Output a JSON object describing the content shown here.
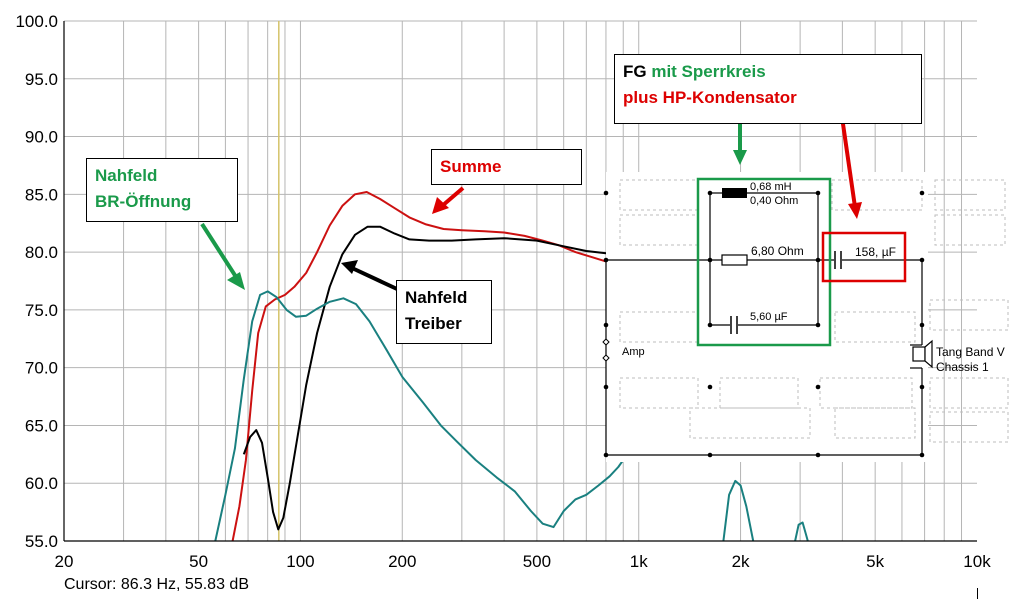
{
  "chart_data": {
    "type": "line",
    "x_scale": "log",
    "xlim": [
      20,
      10000
    ],
    "ylim": [
      55,
      100
    ],
    "grid": true,
    "y_ticks": [
      "100.0",
      "95.0",
      "90.0",
      "85.0",
      "80.0",
      "75.0",
      "70.0",
      "65.0",
      "60.0",
      "55.0"
    ],
    "x_ticks": [
      {
        "v": 20,
        "label": "20"
      },
      {
        "v": 50,
        "label": "50"
      },
      {
        "v": 100,
        "label": "100"
      },
      {
        "v": 200,
        "label": "200"
      },
      {
        "v": 500,
        "label": "500"
      },
      {
        "v": 1000,
        "label": "1k"
      },
      {
        "v": 2000,
        "label": "2k"
      },
      {
        "v": 5000,
        "label": "5k"
      },
      {
        "v": 10000,
        "label": "10k"
      }
    ],
    "cursor": {
      "hz": 86.3
    },
    "cursor_readout": "Cursor: 86.3 Hz, 55.83 dB",
    "series": [
      {
        "name": "Summe",
        "color": "#cc1111",
        "points": [
          [
            63,
            55
          ],
          [
            66,
            58
          ],
          [
            69,
            62
          ],
          [
            72,
            68
          ],
          [
            75,
            73
          ],
          [
            79,
            75.3
          ],
          [
            84,
            75.9
          ],
          [
            90,
            76.3
          ],
          [
            96,
            77
          ],
          [
            104,
            78.2
          ],
          [
            112,
            80
          ],
          [
            122,
            82.3
          ],
          [
            133,
            84
          ],
          [
            145,
            85
          ],
          [
            157,
            85.2
          ],
          [
            172,
            84.6
          ],
          [
            190,
            83.8
          ],
          [
            210,
            83
          ],
          [
            235,
            82.4
          ],
          [
            265,
            82
          ],
          [
            300,
            81.9
          ],
          [
            350,
            81.8
          ],
          [
            400,
            81.7
          ],
          [
            460,
            81.4
          ],
          [
            520,
            81
          ],
          [
            580,
            80.6
          ],
          [
            650,
            80
          ],
          [
            720,
            79.6
          ],
          [
            800,
            79.2
          ],
          [
            850,
            79.8
          ]
        ]
      },
      {
        "name": "Nahfeld Treiber",
        "color": "#000000",
        "points": [
          [
            68,
            62.5
          ],
          [
            71,
            64
          ],
          [
            74,
            64.6
          ],
          [
            77,
            63.5
          ],
          [
            80,
            60.5
          ],
          [
            83,
            57.5
          ],
          [
            86,
            56
          ],
          [
            89,
            57
          ],
          [
            93,
            60
          ],
          [
            98,
            64
          ],
          [
            104,
            68.5
          ],
          [
            112,
            73
          ],
          [
            122,
            77
          ],
          [
            133,
            79.8
          ],
          [
            145,
            81.5
          ],
          [
            158,
            82.2
          ],
          [
            172,
            82.2
          ],
          [
            190,
            81.6
          ],
          [
            210,
            81.1
          ],
          [
            240,
            81
          ],
          [
            280,
            81
          ],
          [
            330,
            81.1
          ],
          [
            400,
            81.2
          ],
          [
            500,
            81
          ],
          [
            600,
            80.5
          ],
          [
            700,
            80.1
          ],
          [
            800,
            79.9
          ],
          [
            900,
            79.8
          ]
        ]
      },
      {
        "name": "Nahfeld BR-Öffnung",
        "color": "#1a8080",
        "points": [
          [
            56,
            55
          ],
          [
            60,
            59
          ],
          [
            64,
            63
          ],
          [
            68,
            69
          ],
          [
            72,
            74
          ],
          [
            76,
            76.3
          ],
          [
            80,
            76.6
          ],
          [
            85,
            76.1
          ],
          [
            91,
            75
          ],
          [
            97,
            74.4
          ],
          [
            104,
            74.5
          ],
          [
            112,
            75.1
          ],
          [
            122,
            75.7
          ],
          [
            134,
            76
          ],
          [
            146,
            75.5
          ],
          [
            160,
            74
          ],
          [
            180,
            71.5
          ],
          [
            200,
            69.2
          ],
          [
            230,
            67
          ],
          [
            260,
            65
          ],
          [
            290,
            63.6
          ],
          [
            330,
            62
          ],
          [
            380,
            60.5
          ],
          [
            430,
            59.3
          ],
          [
            480,
            57.6
          ],
          [
            520,
            56.5
          ],
          [
            560,
            56.2
          ],
          [
            600,
            57.6
          ],
          [
            650,
            58.6
          ],
          [
            700,
            59
          ],
          [
            760,
            59.8
          ],
          [
            820,
            60.6
          ],
          [
            870,
            61.4
          ],
          [
            900,
            62
          ]
        ]
      },
      {
        "name": "Nahfeld BR-Öffnung (hi)",
        "color": "#1a8080",
        "points": [
          [
            1780,
            55
          ],
          [
            1850,
            59
          ],
          [
            1930,
            60.2
          ],
          [
            2000,
            59.8
          ],
          [
            2080,
            58
          ],
          [
            2180,
            55
          ]
        ]
      },
      {
        "name": "Nahfeld BR-Öffnung (hi2)",
        "color": "#1a8080",
        "points": [
          [
            2900,
            55
          ],
          [
            2970,
            56.4
          ],
          [
            3050,
            56.6
          ],
          [
            3120,
            55.6
          ],
          [
            3160,
            55
          ]
        ]
      }
    ]
  },
  "callouts": {
    "nahfeld_br": [
      "Nahfeld",
      "BR-Öffnung"
    ],
    "summe": "Summe",
    "nahfeld_treiber": [
      "Nahfeld",
      "Treiber"
    ],
    "fg_black": "FG",
    "fg_green": " mit Sperrkreis",
    "fg_red": "plus HP-Kondensator"
  },
  "circuit": {
    "inductor": [
      "0,68 mH",
      "0,40 Ohm"
    ],
    "resistor": "6,80 Ohm",
    "parallel_cap": "5,60 µF",
    "hp_cap": "158, µF",
    "amp": "Amp",
    "speaker": [
      "Tang Band V",
      "Chassis 1"
    ]
  },
  "colors": {
    "green": "#1a9a4a",
    "red": "#dd0000",
    "grid": "#b5b5b5",
    "cursor": "#d4c36a"
  }
}
